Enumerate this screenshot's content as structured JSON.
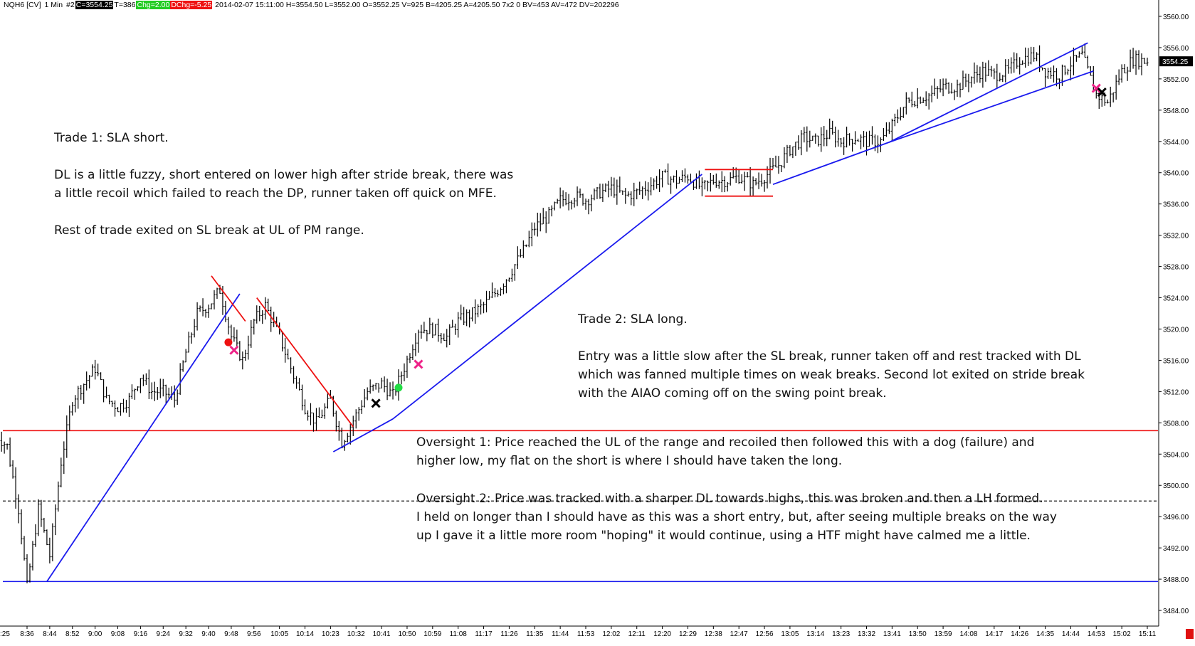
{
  "header": {
    "symbol": "NQH6 [CV]",
    "interval": "1 Min",
    "chart_id": "#2",
    "close": "C=3554.25",
    "ticks": "T=386",
    "change": "Chg=2.00",
    "daily_change": "DChg=-5.25",
    "details": "2014-02-07 15:11:00 H=3554.50 L=3552.00 O=3552.25 V=925 B=4205.25 A=4205.50 7x2 0 BV=453 AV=472 DV=202296"
  },
  "price_badge": "3554.25",
  "colors": {
    "bars": "#000000",
    "trendline_blue": "#1a1aee",
    "trendline_red": "#ee1111",
    "marker_pink": "#ee2288",
    "marker_red": "#ee1111",
    "marker_green": "#22dd44",
    "marker_black": "#000000"
  },
  "annotations": {
    "trade1": [
      "Trade 1:  SLA short.",
      "",
      "DL is a little fuzzy, short entered on lower high after stride break, there was",
      "a little recoil which failed to reach the DP, runner taken off quick on MFE.",
      "",
      "Rest of trade exited on SL break at UL of PM range."
    ],
    "trade2": [
      "Trade 2:  SLA long.",
      "",
      "Entry was a little slow after the SL break, runner taken off and rest tracked with DL",
      "which was fanned multiple times on weak breaks.  Second lot exited on stride break",
      "with the AIAO coming off on the swing point break."
    ],
    "oversight1": [
      "Oversight 1:  Price reached the UL of the range and recoiled then followed this with a dog (failure) and",
      "higher low, my flat on the short is where I should have taken the long."
    ],
    "oversight2": [
      "Oversight 2:  Price was tracked with a sharper DL towards highs, this was broken and then a LH formed.",
      "I held on longer than I should have as this was a short entry, but, after seeing multiple breaks on the way",
      "up I gave it a little more room \"hoping\" it would continue, using a HTF might have calmed me a little."
    ]
  },
  "chart_data": {
    "type": "candlestick",
    "title": "",
    "xlabel": "",
    "ylabel": "",
    "ylim": [
      3482,
      3562
    ],
    "y_ticks": [
      3484,
      3488,
      3492,
      3496,
      3500,
      3504,
      3508,
      3512,
      3516,
      3520,
      3524,
      3528,
      3532,
      3536,
      3540,
      3544,
      3548,
      3552,
      3556,
      3560
    ],
    "y_tick_labels": [
      "3484.00",
      "3488.00",
      "3492.00",
      "3496.00",
      "3500.00",
      "3504.00",
      "3508.00",
      "3512.00",
      "3516.00",
      "3520.00",
      "3524.00",
      "3528.00",
      "3532.00",
      "3536.00",
      "3540.00",
      "3544.00",
      "3548.00",
      "3552.00",
      "3556.00",
      "3560.00"
    ],
    "x_tick_labels": [
      "8:36",
      "8:44",
      "8:52",
      "9:00",
      "9:08",
      "9:16",
      "9:24",
      "9:32",
      "9:40",
      "9:48",
      "9:56",
      "10:05",
      "10:14",
      "10:23",
      "10:32",
      "10:41",
      "10:50",
      "10:59",
      "11:08",
      "11:17",
      "11:26",
      "11:35",
      "11:44",
      "11:53",
      "12:02",
      "12:11",
      "12:20",
      "12:29",
      "12:38",
      "12:47",
      "12:56",
      "13:05",
      "13:14",
      "13:23",
      "13:32",
      "13:41",
      "13:50",
      "13:59",
      "14:08",
      "14:17",
      "14:26",
      "14:35",
      "14:44",
      "14:53",
      "15:02",
      "15:11"
    ],
    "x_edge_label": ":25",
    "time_range": [
      "8:25",
      "15:11"
    ],
    "price_path": [
      [
        "8:25",
        3506.5
      ],
      [
        "8:29",
        3505.0
      ],
      [
        "8:33",
        3497.0
      ],
      [
        "8:36",
        3487.0
      ],
      [
        "8:40",
        3497.0
      ],
      [
        "8:44",
        3491.0
      ],
      [
        "8:48",
        3503.0
      ],
      [
        "8:52",
        3511.0
      ],
      [
        "8:56",
        3513.0
      ],
      [
        "9:00",
        3515.0
      ],
      [
        "9:04",
        3511.0
      ],
      [
        "9:08",
        3510.0
      ],
      [
        "9:12",
        3511.0
      ],
      [
        "9:16",
        3514.0
      ],
      [
        "9:20",
        3512.0
      ],
      [
        "9:24",
        3512.0
      ],
      [
        "9:28",
        3511.0
      ],
      [
        "9:32",
        3517.0
      ],
      [
        "9:36",
        3522.0
      ],
      [
        "9:40",
        3523.0
      ],
      [
        "9:44",
        3525.0
      ],
      [
        "9:48",
        3519.0
      ],
      [
        "9:52",
        3516.0
      ],
      [
        "9:56",
        3521.0
      ],
      [
        "10:00",
        3523.0
      ],
      [
        "10:05",
        3519.0
      ],
      [
        "10:09",
        3515.0
      ],
      [
        "10:14",
        3510.0
      ],
      [
        "10:18",
        3508.0
      ],
      [
        "10:23",
        3511.0
      ],
      [
        "10:27",
        3505.5
      ],
      [
        "10:32",
        3509.0
      ],
      [
        "10:36",
        3512.0
      ],
      [
        "10:41",
        3513.0
      ],
      [
        "10:45",
        3511.5
      ],
      [
        "10:50",
        3516.0
      ],
      [
        "10:54",
        3520.0
      ],
      [
        "10:59",
        3520.0
      ],
      [
        "11:04",
        3519.0
      ],
      [
        "11:08",
        3521.0
      ],
      [
        "11:13",
        3522.0
      ],
      [
        "11:17",
        3523.0
      ],
      [
        "11:22",
        3525.0
      ],
      [
        "11:26",
        3527.0
      ],
      [
        "11:31",
        3530.0
      ],
      [
        "11:35",
        3533.0
      ],
      [
        "11:40",
        3534.5
      ],
      [
        "11:44",
        3536.5
      ],
      [
        "11:49",
        3537.0
      ],
      [
        "11:53",
        3536.5
      ],
      [
        "11:58",
        3537.5
      ],
      [
        "12:02",
        3538.0
      ],
      [
        "12:07",
        3537.0
      ],
      [
        "12:11",
        3537.5
      ],
      [
        "12:16",
        3538.5
      ],
      [
        "12:20",
        3539.5
      ],
      [
        "12:25",
        3539.0
      ],
      [
        "12:29",
        3539.5
      ],
      [
        "12:34",
        3538.0
      ],
      [
        "12:38",
        3539.0
      ],
      [
        "12:43",
        3539.0
      ],
      [
        "12:47",
        3539.5
      ],
      [
        "12:52",
        3538.5
      ],
      [
        "12:56",
        3539.5
      ],
      [
        "13:01",
        3541.0
      ],
      [
        "13:05",
        3543.0
      ],
      [
        "13:10",
        3544.5
      ],
      [
        "13:14",
        3544.0
      ],
      [
        "13:19",
        3545.0
      ],
      [
        "13:23",
        3544.0
      ],
      [
        "13:28",
        3544.5
      ],
      [
        "13:32",
        3544.0
      ],
      [
        "13:37",
        3544.0
      ],
      [
        "13:41",
        3546.0
      ],
      [
        "13:46",
        3549.0
      ],
      [
        "13:50",
        3549.5
      ],
      [
        "13:55",
        3550.0
      ],
      [
        "13:59",
        3551.0
      ],
      [
        "14:04",
        3551.0
      ],
      [
        "14:08",
        3552.0
      ],
      [
        "14:13",
        3553.0
      ],
      [
        "14:17",
        3552.5
      ],
      [
        "14:22",
        3553.0
      ],
      [
        "14:26",
        3554.5
      ],
      [
        "14:31",
        3555.0
      ],
      [
        "14:35",
        3553.0
      ],
      [
        "14:40",
        3552.5
      ],
      [
        "14:44",
        3554.0
      ],
      [
        "14:48",
        3555.0
      ],
      [
        "14:53",
        3550.0
      ],
      [
        "14:57",
        3549.0
      ],
      [
        "15:02",
        3553.0
      ],
      [
        "15:06",
        3554.5
      ],
      [
        "15:11",
        3554.25
      ]
    ],
    "horizontal_lines": [
      {
        "color": "red",
        "style": "solid",
        "price": 3507
      },
      {
        "color": "black",
        "style": "dashed",
        "price": 3498
      },
      {
        "color": "blue",
        "style": "solid",
        "price": 3487.7
      }
    ],
    "range_box": {
      "color": "red",
      "top": 3540.4,
      "bottom": 3537.0,
      "from": "12:35",
      "to": "12:59"
    },
    "trendlines": [
      {
        "color": "blue",
        "from": [
          "8:43",
          3487.7
        ],
        "to": [
          "9:51",
          3524.5
        ]
      },
      {
        "color": "red",
        "from": [
          "9:41",
          3526.8
        ],
        "to": [
          "9:53",
          3521.0
        ]
      },
      {
        "color": "red",
        "from": [
          "9:57",
          3524.0
        ],
        "to": [
          "10:31",
          3507.5
        ]
      },
      {
        "color": "blue",
        "from": [
          "10:24",
          3504.3
        ],
        "to": [
          "10:45",
          3508.5
        ]
      },
      {
        "color": "blue",
        "from": [
          "10:45",
          3508.5
        ],
        "to": [
          "12:34",
          3539.8
        ]
      },
      {
        "color": "blue",
        "from": [
          "12:59",
          3538.5
        ],
        "to": [
          "13:40",
          3543.9
        ]
      },
      {
        "color": "blue",
        "from": [
          "13:40",
          3543.9
        ],
        "to": [
          "14:50",
          3556.6
        ]
      },
      {
        "color": "blue",
        "from": [
          "13:40",
          3543.9
        ],
        "to": [
          "14:52",
          3553.0
        ]
      }
    ],
    "markers": [
      {
        "time": "9:47",
        "price": 3518.3,
        "shape": "dot",
        "color": "red"
      },
      {
        "time": "9:49",
        "price": 3517.3,
        "shape": "x",
        "color": "pink"
      },
      {
        "time": "10:39",
        "price": 3510.5,
        "shape": "x",
        "color": "black"
      },
      {
        "time": "10:47",
        "price": 3512.5,
        "shape": "dot",
        "color": "green"
      },
      {
        "time": "10:54",
        "price": 3515.5,
        "shape": "x",
        "color": "pink"
      },
      {
        "time": "14:53",
        "price": 3550.8,
        "shape": "x",
        "color": "pink"
      },
      {
        "time": "14:55",
        "price": 3550.3,
        "shape": "x",
        "color": "black"
      }
    ]
  }
}
